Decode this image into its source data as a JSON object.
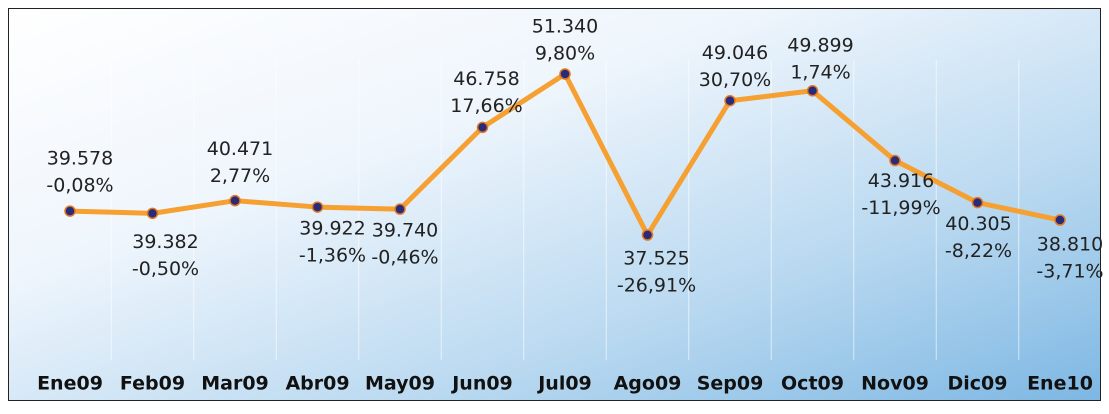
{
  "chart_data": {
    "type": "line",
    "categories": [
      "Ene09",
      "Feb09",
      "Mar09",
      "Abr09",
      "May09",
      "Jun09",
      "Jul09",
      "Ago09",
      "Sep09",
      "Oct09",
      "Nov09",
      "Dic09",
      "Ene10"
    ],
    "series": [
      {
        "color": "#f5a030",
        "values": [
          39578,
          39382,
          40471,
          39922,
          39740,
          46758,
          51340,
          37525,
          49046,
          49899,
          43916,
          40305,
          38810
        ],
        "value_labels": [
          "39.578",
          "39.382",
          "40.471",
          "39.922",
          "39.740",
          "46.758",
          "51.340",
          "37.525",
          "49.046",
          "49.899",
          "43.916",
          "40.305",
          "38.810"
        ],
        "changes": [
          "-0,08%",
          "-0,50%",
          "2,77%",
          "-1,36%",
          "-0,46%",
          "17,66%",
          "9,80%",
          "-26,91%",
          "30,70%",
          "1,74%",
          "-11,99%",
          "-8,22%",
          "-3,71%"
        ]
      }
    ]
  }
}
